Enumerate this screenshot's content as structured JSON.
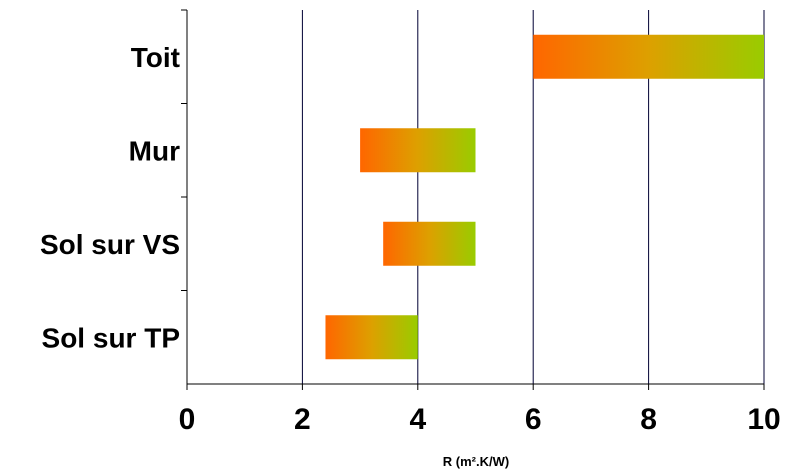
{
  "chart_data": {
    "type": "bar",
    "orientation": "horizontal",
    "title": "",
    "xlabel": "R (m².K/W)",
    "ylabel": "",
    "xlim": [
      0,
      10
    ],
    "xticks": [
      0,
      2,
      4,
      6,
      8,
      10
    ],
    "grid": "vertical",
    "legend": "none",
    "categories": [
      "Toit",
      "Mur",
      "Sol sur VS",
      "Sol sur TP"
    ],
    "ranges": [
      {
        "category": "Toit",
        "min": 6,
        "max": 10
      },
      {
        "category": "Mur",
        "min": 3,
        "max": 5
      },
      {
        "category": "Sol sur VS",
        "min": 3.4,
        "max": 5
      },
      {
        "category": "Sol sur TP",
        "min": 2.4,
        "max": 4
      }
    ],
    "colors": {
      "bar_start": "#ff6600",
      "bar_mid": "#dda000",
      "bar_end": "#99cc00",
      "grid": "#000033"
    }
  }
}
